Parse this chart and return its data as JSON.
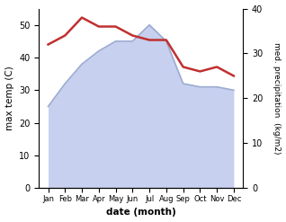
{
  "months": [
    "Jan",
    "Feb",
    "Mar",
    "Apr",
    "May",
    "Jun",
    "Jul",
    "Aug",
    "Sep",
    "Oct",
    "Nov",
    "Dec"
  ],
  "max_temp": [
    25,
    32,
    38,
    42,
    45,
    45,
    50,
    45,
    32,
    31,
    31,
    30
  ],
  "precipitation": [
    32,
    34,
    38,
    36,
    36,
    34,
    33,
    33,
    27,
    26,
    27,
    25
  ],
  "fill_color": "#b0bce8",
  "fill_alpha": 0.7,
  "line_color": "#9aaad0",
  "precip_color": "#c03030",
  "xlabel": "date (month)",
  "ylabel_left": "max temp (C)",
  "ylabel_right": "med. precipitation  (kg/m2)",
  "ylim_left": [
    0,
    55
  ],
  "ylim_right": [
    0,
    40
  ],
  "yticks_left": [
    0,
    10,
    20,
    30,
    40,
    50
  ],
  "yticks_right": [
    0,
    10,
    20,
    30,
    40
  ],
  "background_color": "#ffffff"
}
